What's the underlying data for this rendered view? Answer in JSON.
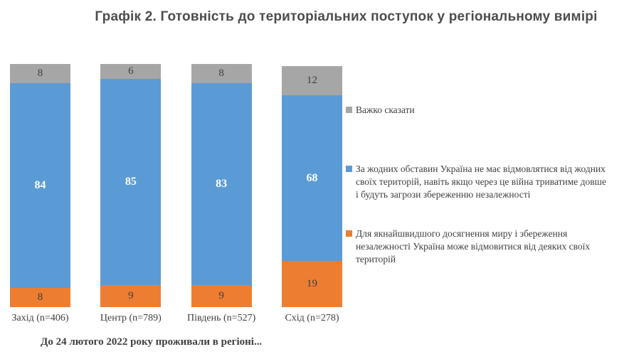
{
  "title": "Графік 2. Готовність до територіальних поступок у регіональному вимірі",
  "footer_caption": "До 24 лютого 2022 року проживали в регіоні...",
  "colors": {
    "gray": "#A6A6A6",
    "blue": "#5B9BD5",
    "orange": "#ED7D31",
    "title_text": "#4d4d4d",
    "body_text": "#3f3f3f",
    "background": "#ffffff"
  },
  "legend": [
    {
      "label": "Важко сказати",
      "color": "#A6A6A6"
    },
    {
      "label": "За жодних обставин Україна не має відмовлятися від жодних своїх територій, навіть якщо через це війна триватиме довше і будуть загрози збереженню незалежності",
      "color": "#5B9BD5"
    },
    {
      "label": "Для якнайшвидшого досягнення миру і збереження незалежності Україна може відмовитися від деяких своїх територій",
      "color": "#ED7D31"
    }
  ],
  "chart_data": {
    "type": "bar",
    "stacked": true,
    "orientation": "vertical",
    "units": "percent",
    "title": "Графік 2. Готовність до територіальних поступок у регіональному вимірі",
    "xlabel": "До 24 лютого 2022 року проживали в регіоні...",
    "ylabel": "",
    "ylim": [
      0,
      100
    ],
    "grid": false,
    "legend_position": "right",
    "categories": [
      "Захід (n=406)",
      "Центр (n=789)",
      "Південь (n=527)",
      "Схід (n=278)"
    ],
    "series": [
      {
        "name": "Для якнайшвидшого досягнення миру і збереження незалежності Україна може відмовитися від деяких своїх територій",
        "color": "#ED7D31",
        "label_color": "#3f3f3f",
        "label_bold": false,
        "values": [
          8,
          9,
          9,
          19
        ]
      },
      {
        "name": "За жодних обставин Україна не має відмовлятися від жодних своїх територій, навіть якщо через це війна триватиме довше і будуть загрози збереженню незалежності",
        "color": "#5B9BD5",
        "label_color": "#ffffff",
        "label_bold": true,
        "values": [
          84,
          85,
          83,
          68
        ]
      },
      {
        "name": "Важко сказати",
        "color": "#A6A6A6",
        "label_color": "#3f3f3f",
        "label_bold": false,
        "values": [
          8,
          6,
          8,
          12
        ]
      }
    ]
  }
}
